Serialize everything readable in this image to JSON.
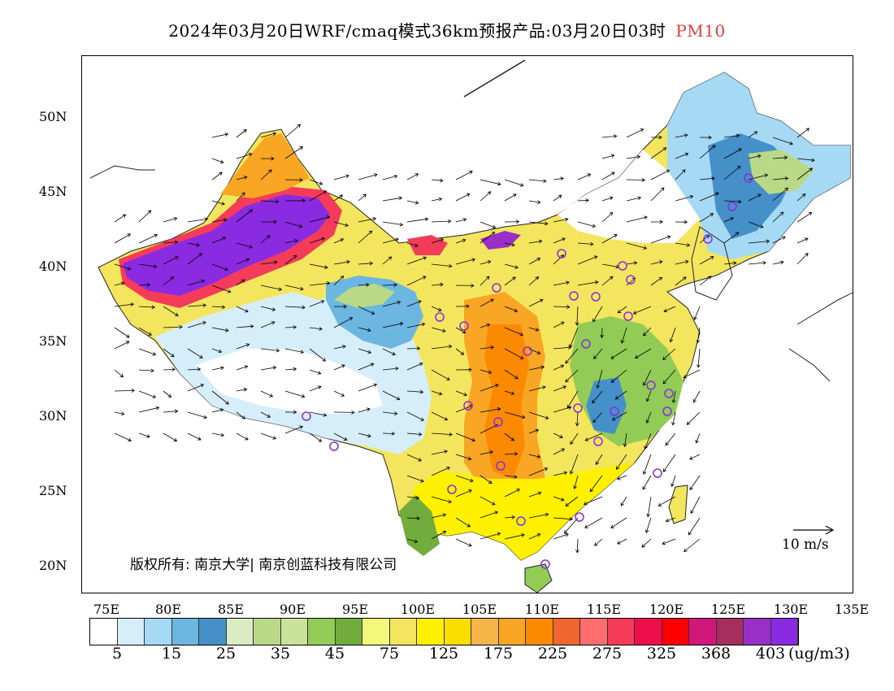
{
  "header": {
    "title": "2024年03月20日WRF/cmaq模式36km预报产品:03月20日03时",
    "pollutant": "PM10"
  },
  "map": {
    "projection": "lat-lon",
    "lon_range": [
      73,
      135
    ],
    "lat_range": [
      18,
      54
    ],
    "lat_ticks": [
      "50N",
      "45N",
      "40N",
      "35N",
      "30N",
      "25N",
      "20N"
    ],
    "lon_ticks": [
      "75E",
      "80E",
      "85E",
      "90E",
      "95E",
      "100E",
      "105E",
      "110E",
      "115E",
      "120E",
      "125E",
      "130E",
      "135E"
    ],
    "copyright": "版权所有: 南京大学| 南京创蓝科技有限公司",
    "wind_reference": "10 m/s"
  },
  "colorbar": {
    "colors": [
      "#ffffff",
      "#d6eef9",
      "#a6daf4",
      "#6cb6e2",
      "#4590c8",
      "#dcebc4",
      "#bad986",
      "#c9e49a",
      "#92cb55",
      "#72ac3c",
      "#f4f87a",
      "#f3e65e",
      "#fff000",
      "#f9de00",
      "#f7b448",
      "#f9a625",
      "#fb8a00",
      "#f06530",
      "#fd6d6d",
      "#f43b5a",
      "#ee0f4a",
      "#fd0000",
      "#d0177a",
      "#a72e5c",
      "#9a2fc8",
      "#8a2be2"
    ],
    "labels": [
      "5",
      "15",
      "25",
      "35",
      "45",
      "75",
      "125",
      "175",
      "225",
      "275",
      "325",
      "368",
      "403"
    ],
    "unit": "(ug/m3)"
  }
}
